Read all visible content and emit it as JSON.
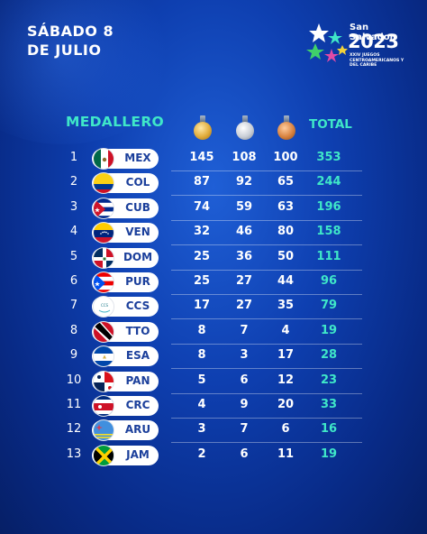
{
  "header": {
    "date_line1": "SÁBADO 8",
    "date_line2": "DE JULIO"
  },
  "logo": {
    "city": "San Salvador",
    "year": "2023",
    "subtitle": "XXIV JUEGOS CENTROAMERICANOS Y DEL CARIBE"
  },
  "table": {
    "title": "MEDALLERO",
    "total_label": "TOTAL",
    "rows": [
      {
        "rank": "1",
        "code": "MEX",
        "gold": "145",
        "silver": "108",
        "bronze": "100",
        "total": "353"
      },
      {
        "rank": "2",
        "code": "COL",
        "gold": "87",
        "silver": "92",
        "bronze": "65",
        "total": "244"
      },
      {
        "rank": "3",
        "code": "CUB",
        "gold": "74",
        "silver": "59",
        "bronze": "63",
        "total": "196"
      },
      {
        "rank": "4",
        "code": "VEN",
        "gold": "32",
        "silver": "46",
        "bronze": "80",
        "total": "158"
      },
      {
        "rank": "5",
        "code": "DOM",
        "gold": "25",
        "silver": "36",
        "bronze": "50",
        "total": "111"
      },
      {
        "rank": "6",
        "code": "PUR",
        "gold": "25",
        "silver": "27",
        "bronze": "44",
        "total": "96"
      },
      {
        "rank": "7",
        "code": "CCS",
        "gold": "17",
        "silver": "27",
        "bronze": "35",
        "total": "79"
      },
      {
        "rank": "8",
        "code": "TTO",
        "gold": "8",
        "silver": "7",
        "bronze": "4",
        "total": "19"
      },
      {
        "rank": "9",
        "code": "ESA",
        "gold": "8",
        "silver": "3",
        "bronze": "17",
        "total": "28"
      },
      {
        "rank": "10",
        "code": "PAN",
        "gold": "5",
        "silver": "6",
        "bronze": "12",
        "total": "23"
      },
      {
        "rank": "11",
        "code": "CRC",
        "gold": "4",
        "silver": "9",
        "bronze": "20",
        "total": "33"
      },
      {
        "rank": "12",
        "code": "ARU",
        "gold": "3",
        "silver": "7",
        "bronze": "6",
        "total": "16"
      },
      {
        "rank": "13",
        "code": "JAM",
        "gold": "2",
        "silver": "6",
        "bronze": "11",
        "total": "19"
      }
    ]
  },
  "colors": {
    "accent": "#3fe7c8",
    "background": "#0e3fb0",
    "code_text": "#1b3f9b"
  }
}
